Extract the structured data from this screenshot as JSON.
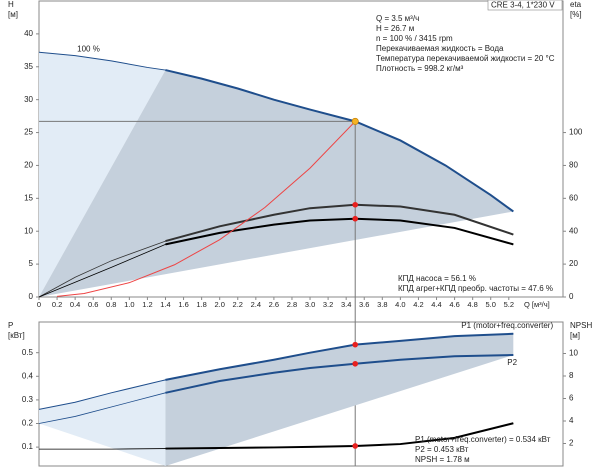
{
  "chart_data": [
    {
      "type": "line",
      "model": "CRE 3-4, 1*230 V",
      "ylabel": [
        "H",
        "[м]"
      ],
      "y2label": [
        "eta",
        "[%]"
      ],
      "xlabel": "Q [м³/ч]",
      "info": [
        "Q = 3.5 м³/ч",
        "H = 26.7 м",
        "n = 100 % / 3415 rpm",
        "Перекачиваемая жидкость = Вода",
        "Температура перекачиваемой жидкости = 20 °C",
        "Плотность = 998.2 кг/м³"
      ],
      "annotations": [
        "КПД насоса = 56.1 %",
        "КПД агрег+КПД преобр. частоты = 47.6 %"
      ],
      "xlim": [
        0,
        5.8
      ],
      "ylim": [
        0,
        45
      ],
      "y2lim": [
        0,
        180
      ],
      "xticks": [
        0,
        0.2,
        0.4,
        0.6,
        0.8,
        {
          "value": 1,
          "label": "1.0"
        },
        1.2,
        1.4,
        1.6,
        1.8,
        {
          "value": 2,
          "label": "2.0"
        },
        2.2,
        2.4,
        2.6,
        2.8,
        {
          "value": 3,
          "label": "3.0"
        },
        3.2,
        3.4,
        3.6,
        3.8,
        {
          "value": 4,
          "label": "4.0"
        },
        4.2,
        4.4,
        4.6,
        4.8,
        {
          "value": 5,
          "label": "5.0"
        },
        5.2
      ],
      "yticks": [
        0,
        5,
        10,
        15,
        20,
        25,
        30,
        35,
        40
      ],
      "y2ticks": [
        0,
        20,
        40,
        60,
        80,
        100
      ],
      "highlight_xrange": [
        1.4,
        5.25
      ],
      "duty_point": {
        "x": 3.5,
        "y": 26.7
      },
      "series": [
        {
          "name": "100 %",
          "color": "#1f4e8c",
          "x": [
            0,
            0.4,
            0.8,
            1.2,
            1.4,
            1.8,
            2.2,
            2.6,
            3.0,
            3.5,
            4.0,
            4.5,
            5.0,
            5.25
          ],
          "values": [
            37.2,
            36.7,
            35.9,
            34.9,
            34.5,
            33.2,
            31.7,
            30.0,
            28.5,
            26.7,
            23.8,
            20.0,
            15.5,
            13.0
          ]
        },
        {
          "color": "#333333",
          "axis": "y2",
          "x": [
            0,
            0.4,
            0.8,
            1.4,
            2.0,
            2.6,
            3.0,
            3.5,
            4.0,
            4.6,
            5.25
          ],
          "values": [
            0,
            12,
            22,
            34,
            43,
            50,
            54,
            56.1,
            55,
            50,
            38
          ]
        },
        {
          "color": "#000000",
          "axis": "y2",
          "x": [
            0,
            0.4,
            0.8,
            1.4,
            2.0,
            2.6,
            3.0,
            3.5,
            4.0,
            4.6,
            5.25
          ],
          "values": [
            0,
            9,
            18,
            32,
            39,
            44,
            46.5,
            47.6,
            46.5,
            42,
            32
          ]
        },
        {
          "color": "#ee4444",
          "x": [
            0.2,
            0.5,
            1.0,
            1.5,
            2.0,
            2.5,
            3.0,
            3.5
          ],
          "values": [
            0.1,
            0.54,
            2.18,
            4.9,
            8.72,
            13.6,
            19.6,
            26.7
          ]
        }
      ]
    },
    {
      "type": "line",
      "ylabel": [
        "P",
        "[кВт]"
      ],
      "y2label": [
        "NPSH",
        "[м]"
      ],
      "info": [
        "P1 (motor+freq.converter) = 0.534 кВт",
        "P2 = 0.453 кВт",
        "NPSH = 1.78 м"
      ],
      "xlim": [
        0,
        5.8
      ],
      "ylim": [
        0.02,
        0.63
      ],
      "y2lim": [
        0,
        12.8
      ],
      "yticks": [
        0.1,
        0.2,
        0.3,
        0.4,
        0.5
      ],
      "y2ticks": [
        2,
        4,
        6,
        8,
        10
      ],
      "highlight_xrange": [
        1.4,
        5.25
      ],
      "duty_x": 3.5,
      "series": [
        {
          "name": "P1 (motor+freq.converter)",
          "color": "#1f4e8c",
          "x": [
            0,
            0.4,
            0.8,
            1.4,
            2.0,
            2.6,
            3.0,
            3.5,
            4.0,
            4.6,
            5.25
          ],
          "values": [
            0.26,
            0.29,
            0.33,
            0.385,
            0.43,
            0.47,
            0.5,
            0.534,
            0.55,
            0.57,
            0.58
          ]
        },
        {
          "name": "P2",
          "color": "#1f4e8c",
          "x": [
            0,
            0.4,
            0.8,
            1.4,
            2.0,
            2.6,
            3.0,
            3.5,
            4.0,
            4.6,
            5.25
          ],
          "values": [
            0.2,
            0.23,
            0.27,
            0.33,
            0.38,
            0.415,
            0.435,
            0.453,
            0.47,
            0.485,
            0.49
          ]
        },
        {
          "color": "#000000",
          "axis": "y2",
          "x": [
            0,
            0.4,
            0.8,
            1.4,
            2.0,
            2.6,
            3.0,
            3.5,
            4.0,
            4.6,
            5.25
          ],
          "values": [
            1.5,
            1.5,
            1.5,
            1.55,
            1.6,
            1.65,
            1.7,
            1.78,
            1.95,
            2.5,
            3.8
          ]
        }
      ]
    }
  ]
}
